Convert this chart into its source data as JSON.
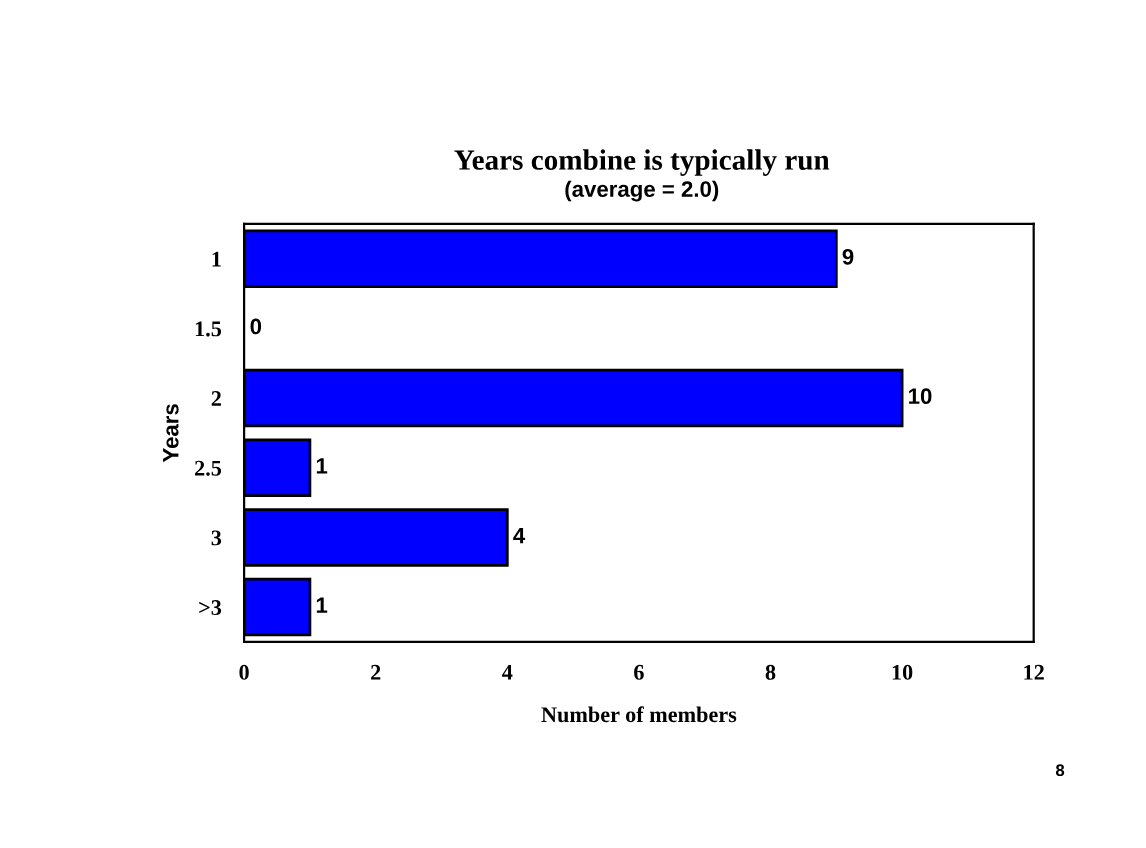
{
  "chart_data": {
    "type": "bar",
    "orientation": "horizontal",
    "title": "Years combine is typically run",
    "subtitle": "(average = 2.0)",
    "xlabel": "Number of members",
    "ylabel": "Years",
    "categories": [
      "1",
      "1.5",
      "2",
      "2.5",
      "3",
      ">3"
    ],
    "values": [
      9,
      0,
      10,
      1,
      4,
      1
    ],
    "color": "#0000ff",
    "xlim": [
      0,
      12
    ],
    "xticks": [
      0,
      2,
      4,
      6,
      8,
      10,
      12
    ],
    "data_labels": true,
    "grid": false,
    "legend": false,
    "annotations": [
      "8"
    ]
  }
}
